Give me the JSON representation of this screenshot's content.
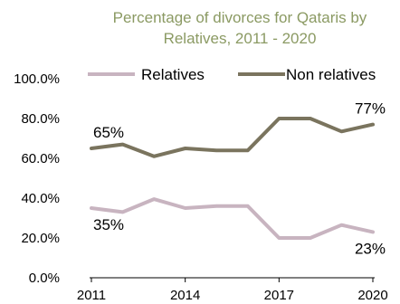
{
  "chart_data": {
    "type": "line",
    "title": [
      "Percentage of divorces for Qataris by",
      "Relatives, 2011 - 2020"
    ],
    "x": [
      2011,
      2012,
      2013,
      2014,
      2015,
      2016,
      2017,
      2018,
      2019,
      2020
    ],
    "x_tick_labels": [
      "2011",
      "2014",
      "2017",
      "2020"
    ],
    "x_tick_values": [
      2011,
      2014,
      2017,
      2020
    ],
    "ylim": [
      0,
      100
    ],
    "y_tick_labels": [
      "0.0%",
      "20.0%",
      "40.0%",
      "60.0%",
      "80.0%",
      "100.0%"
    ],
    "y_tick_values": [
      0,
      20,
      40,
      60,
      80,
      100
    ],
    "grid": false,
    "legend_position": "top",
    "series": [
      {
        "name": "Relatives",
        "color": "#c8b4c0",
        "values": [
          35,
          33,
          39.5,
          35,
          36,
          36,
          20,
          20,
          26.5,
          23
        ]
      },
      {
        "name": "Non relatives",
        "color": "#7a745e",
        "values": [
          65,
          67,
          61,
          65,
          64,
          64,
          80,
          80,
          73.5,
          77
        ]
      }
    ],
    "annotations": [
      {
        "series": 1,
        "index": 0,
        "text": "65%"
      },
      {
        "series": 1,
        "index": 9,
        "text": "77%"
      },
      {
        "series": 0,
        "index": 0,
        "text": "35%"
      },
      {
        "series": 0,
        "index": 9,
        "text": "23%"
      }
    ]
  }
}
